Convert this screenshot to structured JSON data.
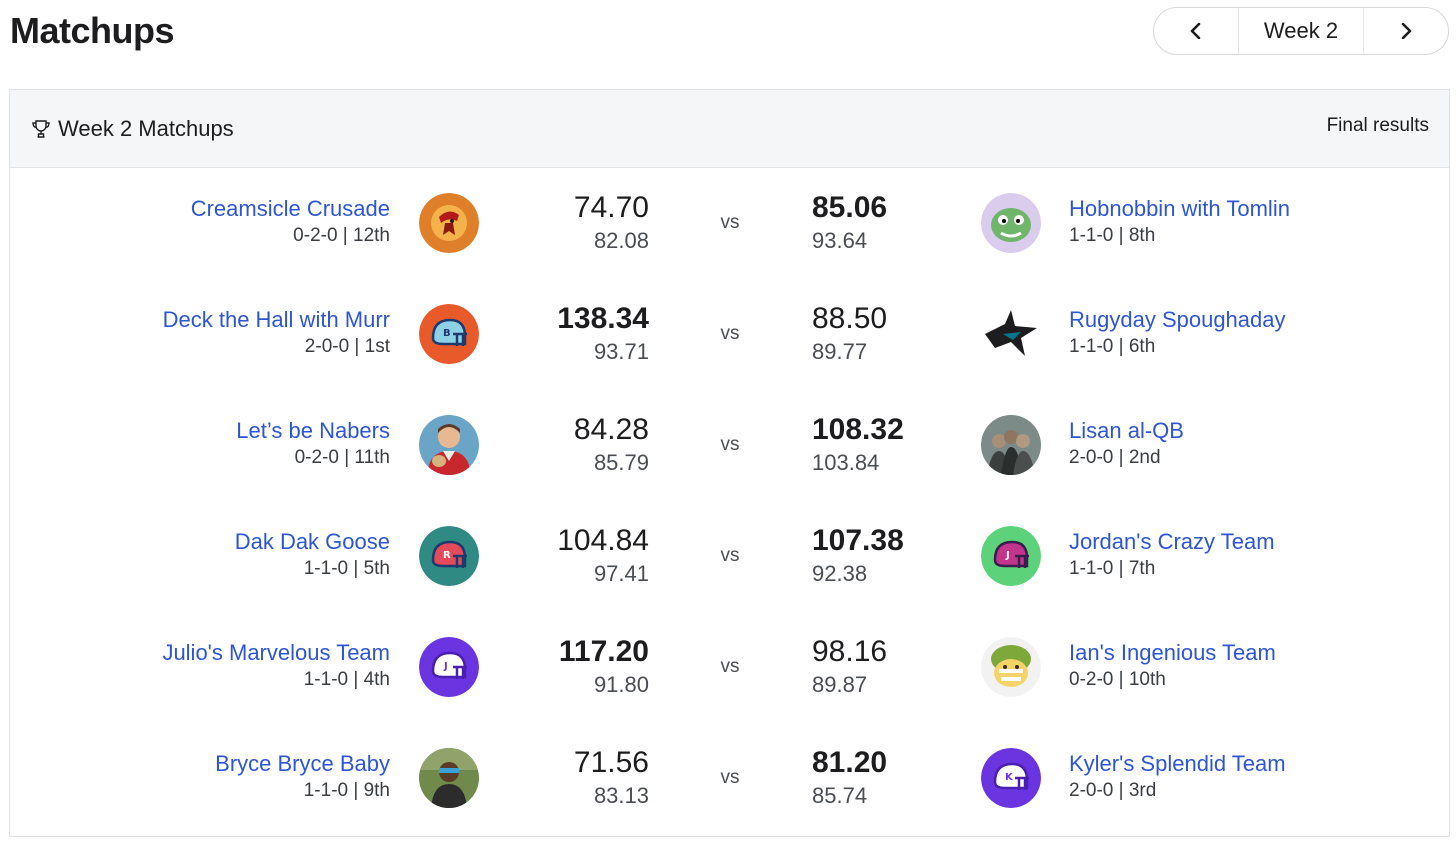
{
  "page": {
    "title": "Matchups"
  },
  "week_nav": {
    "label": "Week 2",
    "prev_icon": "chevron-left-icon",
    "next_icon": "chevron-right-icon"
  },
  "card": {
    "title": "Week 2 Matchups",
    "title_icon": "trophy-icon",
    "status": "Final results"
  },
  "colors": {
    "link": "#2e55d4",
    "text": "#1d1d1f",
    "muted": "#4a4d52"
  },
  "vs_label": "vs",
  "matchups": [
    {
      "left": {
        "name": "Creamsicle Crusade",
        "record": "0-2-0 | 12th",
        "score": "74.70",
        "projected": "82.08",
        "winner": false,
        "avatar": "pirate-logo"
      },
      "right": {
        "name": "Hobnobbin with Tomlin",
        "record": "1-1-0 | 8th",
        "score": "85.06",
        "projected": "93.64",
        "winner": true,
        "avatar": "dinosaur-avatar"
      }
    },
    {
      "left": {
        "name": "Deck the Hall with Murr",
        "record": "2-0-0 | 1st",
        "score": "138.34",
        "projected": "93.71",
        "winner": true,
        "avatar": "helmet-b-avatar"
      },
      "right": {
        "name": "Rugyday Spoughaday",
        "record": "1-1-0 | 6th",
        "score": "88.50",
        "projected": "89.77",
        "winner": false,
        "avatar": "shark-logo"
      }
    },
    {
      "left": {
        "name": "Let’s be Nabers",
        "record": "0-2-0 | 11th",
        "score": "84.28",
        "projected": "85.79",
        "winner": false,
        "avatar": "person-photo"
      },
      "right": {
        "name": "Lisan al-QB",
        "record": "2-0-0 | 2nd",
        "score": "108.32",
        "projected": "103.84",
        "winner": true,
        "avatar": "group-photo"
      }
    },
    {
      "left": {
        "name": "Dak Dak Goose",
        "record": "1-1-0 | 5th",
        "score": "104.84",
        "projected": "97.41",
        "winner": false,
        "avatar": "helmet-r-avatar"
      },
      "right": {
        "name": "Jordan's Crazy Team",
        "record": "1-1-0 | 7th",
        "score": "107.38",
        "projected": "92.38",
        "winner": true,
        "avatar": "helmet-j-avatar"
      }
    },
    {
      "left": {
        "name": "Julio's Marvelous Team",
        "record": "1-1-0 | 4th",
        "score": "117.20",
        "projected": "91.80",
        "winner": true,
        "avatar": "helmet-j-purple-avatar"
      },
      "right": {
        "name": "Ian's Ingenious Team",
        "record": "0-2-0 | 10th",
        "score": "98.16",
        "projected": "89.87",
        "winner": false,
        "avatar": "football-mascot"
      }
    },
    {
      "left": {
        "name": "Bryce Bryce Baby",
        "record": "1-1-0 | 9th",
        "score": "71.56",
        "projected": "83.13",
        "winner": false,
        "avatar": "player-photo"
      },
      "right": {
        "name": "Kyler's Splendid Team",
        "record": "2-0-0 | 3rd",
        "score": "81.20",
        "projected": "85.74",
        "winner": true,
        "avatar": "helmet-k-avatar"
      }
    }
  ]
}
